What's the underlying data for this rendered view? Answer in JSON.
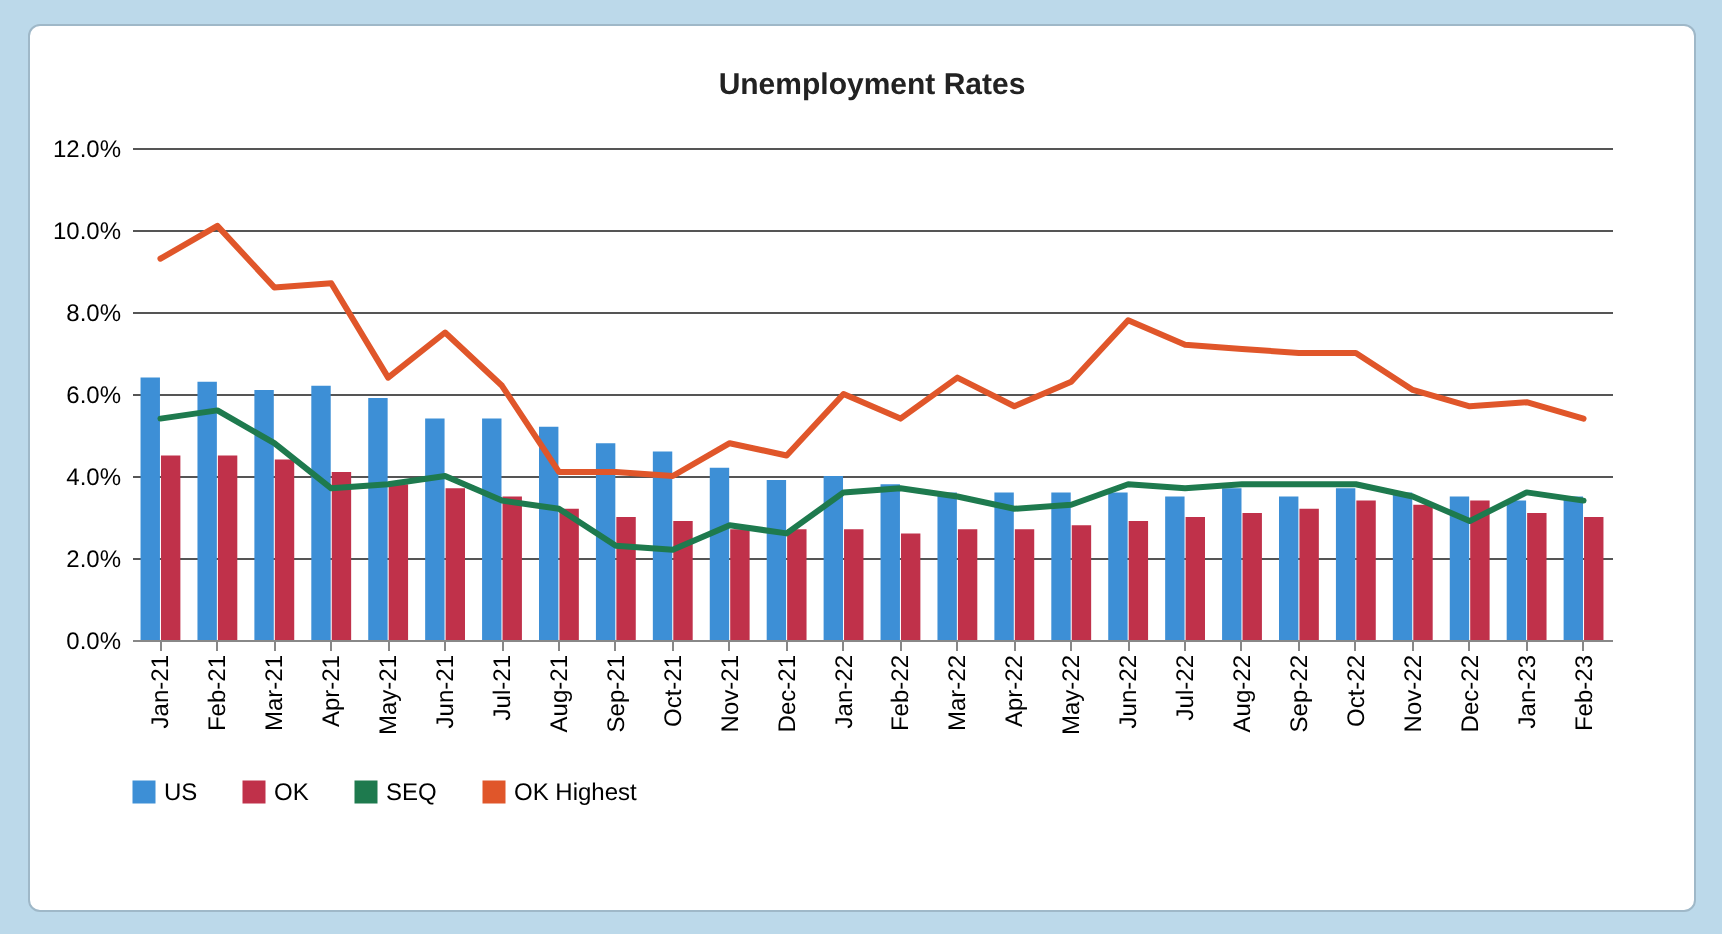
{
  "chart_data": {
    "type": "bar",
    "title": "Unemployment Rates",
    "categories": [
      "Jan-21",
      "Feb-21",
      "Mar-21",
      "Apr-21",
      "May-21",
      "Jun-21",
      "Jul-21",
      "Aug-21",
      "Sep-21",
      "Oct-21",
      "Nov-21",
      "Dec-21",
      "Jan-22",
      "Feb-22",
      "Mar-22",
      "Apr-22",
      "May-22",
      "Jun-22",
      "Jul-22",
      "Aug-22",
      "Sep-22",
      "Oct-22",
      "Nov-22",
      "Dec-22",
      "Jan-23",
      "Feb-23"
    ],
    "series": [
      {
        "name": "US",
        "color": "#3d8fd6",
        "values": [
          6.4,
          6.3,
          6.1,
          6.2,
          5.9,
          5.4,
          5.4,
          5.2,
          4.8,
          4.6,
          4.2,
          3.9,
          4.0,
          3.8,
          3.6,
          3.6,
          3.6,
          3.6,
          3.5,
          3.7,
          3.5,
          3.7,
          3.6,
          3.5,
          3.4,
          3.5
        ]
      },
      {
        "name": "OK",
        "color": "#c0314a",
        "values": [
          4.5,
          4.5,
          4.4,
          4.1,
          3.8,
          3.7,
          3.5,
          3.2,
          3.0,
          2.9,
          2.7,
          2.7,
          2.7,
          2.6,
          2.7,
          2.7,
          2.8,
          2.9,
          3.0,
          3.1,
          3.2,
          3.4,
          3.3,
          3.4,
          3.1,
          3.0
        ]
      },
      {
        "name": "SEQ",
        "type": "line",
        "color": "#1e7a4e",
        "values": [
          5.4,
          5.6,
          4.8,
          3.7,
          3.8,
          4.0,
          3.4,
          3.2,
          2.3,
          2.2,
          2.8,
          2.6,
          3.6,
          3.7,
          3.5,
          3.2,
          3.3,
          3.8,
          3.7,
          3.8,
          3.8,
          3.8,
          3.5,
          2.9,
          3.6,
          3.4
        ]
      },
      {
        "name": "OK Highest",
        "type": "line",
        "color": "#e0562a",
        "values": [
          9.3,
          10.1,
          8.6,
          8.7,
          6.4,
          7.5,
          6.2,
          4.1,
          4.1,
          4.0,
          4.8,
          4.5,
          6.0,
          5.4,
          6.4,
          5.7,
          6.3,
          7.8,
          7.2,
          7.1,
          7.0,
          7.0,
          6.1,
          5.7,
          5.8,
          5.4
        ]
      }
    ],
    "ylim": [
      0,
      12
    ],
    "yticks": [
      {
        "value": 0,
        "label": "0.0%"
      },
      {
        "value": 2,
        "label": "2.0%"
      },
      {
        "value": 4,
        "label": "4.0%"
      },
      {
        "value": 6,
        "label": "6.0%"
      },
      {
        "value": 8,
        "label": "8.0%"
      },
      {
        "value": 10,
        "label": "10.0%"
      },
      {
        "value": 12,
        "label": "12.0%"
      }
    ],
    "grid": "y",
    "legend": "bottom"
  }
}
